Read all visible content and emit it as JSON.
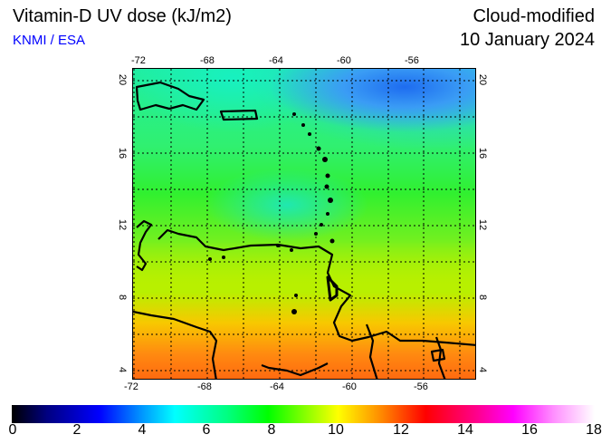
{
  "header": {
    "title": "Vitamin-D UV dose (kJ/m2)",
    "source": "KNMI / ESA",
    "product": "Cloud-modified",
    "date": "10 January 2024"
  },
  "map": {
    "lon_ticks_top": [
      "-72",
      "-68",
      "-64",
      "-60",
      "-56"
    ],
    "lon_ticks_bottom": [
      "-72",
      "-68",
      "-64",
      "-60",
      "-56"
    ],
    "lat_ticks": [
      "20",
      "16",
      "12",
      "8",
      "4"
    ],
    "lon_range": [
      -72,
      -53
    ],
    "lat_range": [
      3.5,
      20.6
    ],
    "region": "Caribbean / northern South America"
  },
  "colorbar": {
    "ticks": [
      "0",
      "2",
      "4",
      "6",
      "8",
      "10",
      "12",
      "14",
      "16",
      "18"
    ],
    "min": 0,
    "max": 18,
    "unit": "kJ/m2"
  }
}
